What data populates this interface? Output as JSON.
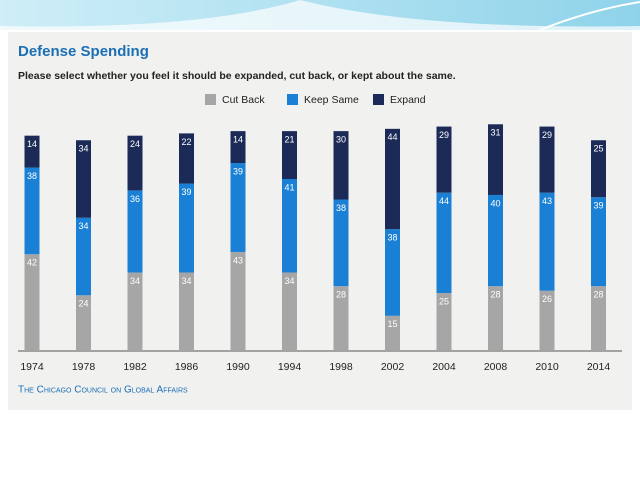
{
  "chart_data": {
    "type": "stacked-bar",
    "title": "Defense Spending",
    "subtitle": "Please select whether you feel it should be expanded, cut back, or kept about the same.",
    "source": "The Chicago Council on Global Affairs",
    "categories": [
      "1974",
      "1978",
      "1982",
      "1986",
      "1990",
      "1994",
      "1998",
      "2002",
      "2004",
      "2008",
      "2010",
      "2014"
    ],
    "series": [
      {
        "name": "Cut Back",
        "color": "#a6a6a6",
        "values": [
          42,
          24,
          34,
          34,
          43,
          34,
          28,
          15,
          25,
          28,
          26,
          28
        ]
      },
      {
        "name": "Keep Same",
        "color": "#1a80d6",
        "values": [
          38,
          34,
          36,
          39,
          39,
          41,
          38,
          38,
          44,
          40,
          43,
          39
        ]
      },
      {
        "name": "Expand",
        "color": "#1c2a58",
        "values": [
          14,
          34,
          24,
          22,
          14,
          21,
          30,
          44,
          29,
          31,
          29,
          25
        ]
      }
    ]
  }
}
